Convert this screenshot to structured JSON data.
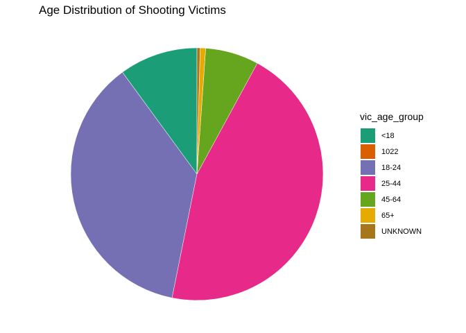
{
  "chart_data": {
    "type": "pie",
    "title": "Age Distribution of Shooting Victims",
    "legend_title": "vic_age_group",
    "legend_position": "right",
    "slices": [
      {
        "label": "<18",
        "value": 10.0,
        "color": "#1B9E77"
      },
      {
        "label": "1022",
        "value": 0.01,
        "color": "#D95F02"
      },
      {
        "label": "18-24",
        "value": 36.6,
        "color": "#7570B3"
      },
      {
        "label": "25-44",
        "value": 45.0,
        "color": "#E7298A"
      },
      {
        "label": "45-64",
        "value": 6.8,
        "color": "#66A61E"
      },
      {
        "label": "65+",
        "value": 0.7,
        "color": "#E6AB02"
      },
      {
        "label": "UNKNOWN",
        "value": 0.4,
        "color": "#A6761D"
      }
    ]
  }
}
